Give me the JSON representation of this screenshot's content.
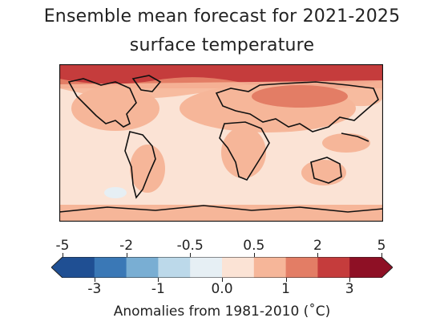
{
  "title_line1": "Ensemble mean forecast for 2021-2025",
  "title_line2": "surface temperature",
  "colorbar": {
    "top_ticks": [
      "-5",
      "-2",
      "-0.5",
      "0.5",
      "2",
      "5"
    ],
    "bottom_ticks": [
      "-3",
      "-1",
      "0.0",
      "1",
      "3"
    ],
    "label": "Anomalies from 1981-2010 ($^\\circ$C)",
    "label_display": "Anomalies from 1981-2010 (˚C)",
    "colors": [
      "#1f4f93",
      "#3a78b6",
      "#79aed3",
      "#bcd9ea",
      "#e6eff4",
      "#fbe3d5",
      "#f6b699",
      "#e37d65",
      "#c53c3c",
      "#8e1025"
    ],
    "extend": "both"
  },
  "map": {
    "projection": "plate-carree",
    "field": "surface temperature anomaly",
    "background_color": "#fbe3d5"
  }
}
